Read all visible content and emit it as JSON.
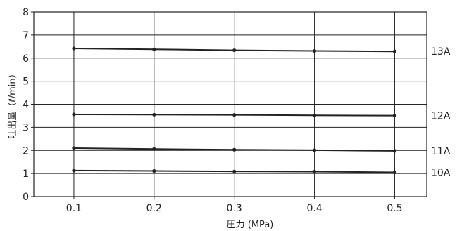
{
  "chart_data": {
    "type": "line",
    "title": "",
    "xlabel": "圧力 (MPa)",
    "ylabel": "吐出量（ℓ/min）",
    "x": [
      0.1,
      0.2,
      0.3,
      0.4,
      0.5
    ],
    "x_tick_labels": [
      "0.1",
      "0.2",
      "0.3",
      "0.4",
      "0.5"
    ],
    "xlim": [
      0.05,
      0.54
    ],
    "ylim": [
      0,
      8
    ],
    "y_ticks": [
      0,
      1,
      2,
      3,
      4,
      5,
      6,
      7,
      8
    ],
    "grid": true,
    "legend": "none",
    "series": [
      {
        "name": "13A",
        "values": [
          6.42,
          6.38,
          6.34,
          6.31,
          6.29
        ]
      },
      {
        "name": "12A",
        "values": [
          3.56,
          3.55,
          3.54,
          3.52,
          3.51
        ]
      },
      {
        "name": "11A",
        "values": [
          2.1,
          2.06,
          2.03,
          2.01,
          1.98
        ]
      },
      {
        "name": "10A",
        "values": [
          1.13,
          1.11,
          1.09,
          1.08,
          1.05
        ]
      }
    ],
    "line_color": "#222222",
    "grid_color": "#222222"
  }
}
